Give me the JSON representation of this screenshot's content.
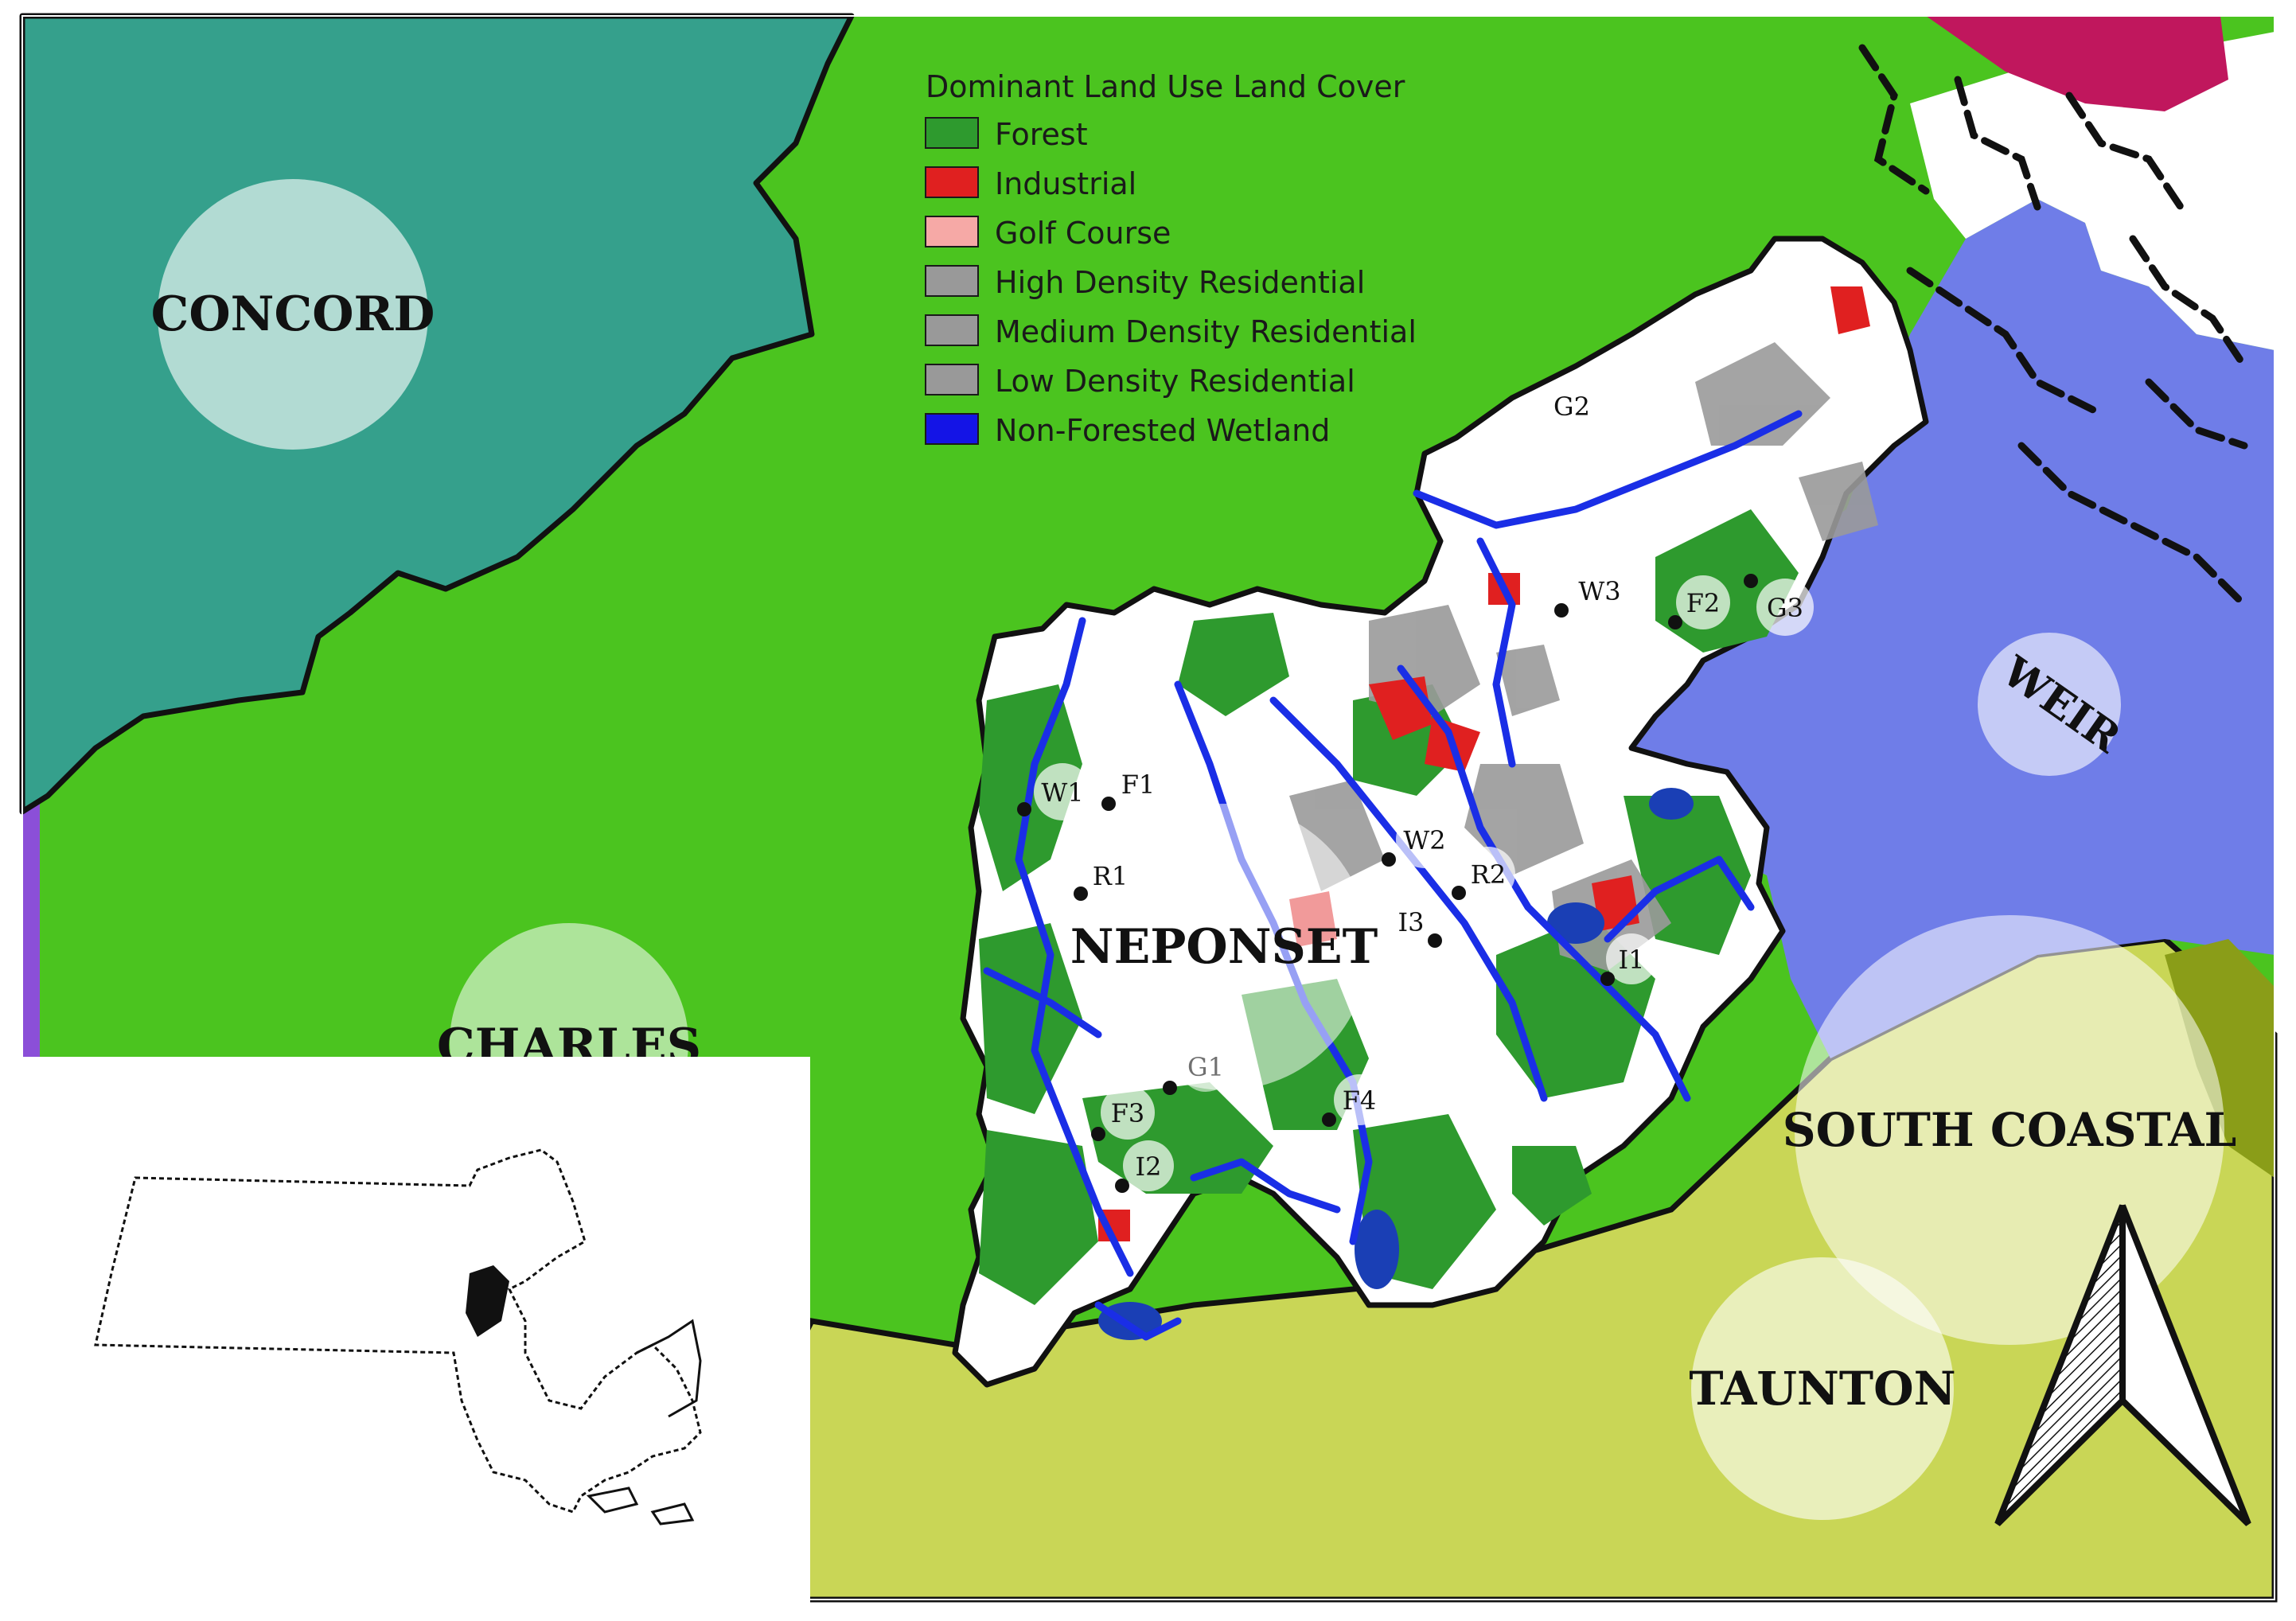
{
  "legend": {
    "title": "Dominant Land Use Land Cover",
    "items": [
      {
        "label": "Forest",
        "color": "#2e9a2e"
      },
      {
        "label": "Industrial",
        "color": "#e02020"
      },
      {
        "label": "Golf Course",
        "color": "#f6a9a6"
      },
      {
        "label": "High Density Residential",
        "color": "#999999"
      },
      {
        "label": "Medium Density Residential",
        "color": "#999999"
      },
      {
        "label": "Low Density Residential",
        "color": "#999999"
      },
      {
        "label": "Non-Forested Wetland",
        "color": "#1414e6"
      }
    ]
  },
  "basins": {
    "concord": "CONCORD",
    "charles": "CHARLES",
    "neponset": "NEPONSET",
    "weir": "WEIR",
    "south_coastal": "SOUTH COASTAL",
    "taunton": "TAUNTON"
  },
  "sites": {
    "w1": "W1",
    "f1": "F1",
    "r1": "R1",
    "w2": "W2",
    "r2": "R2",
    "i3": "I3",
    "i1": "I1",
    "g1": "G1",
    "f3": "F3",
    "i2": "I2",
    "f4": "F4",
    "g2": "G2",
    "w3": "W3",
    "f2": "F2",
    "g3": "G3"
  },
  "colors": {
    "concord": "#35a08c",
    "charles": "#4bc41f",
    "weir": "#6f7de8",
    "south_coastal": "#c9d656",
    "magenta": "#c0175d",
    "olive": "#8a9d18",
    "purple": "#8b4fd8"
  }
}
